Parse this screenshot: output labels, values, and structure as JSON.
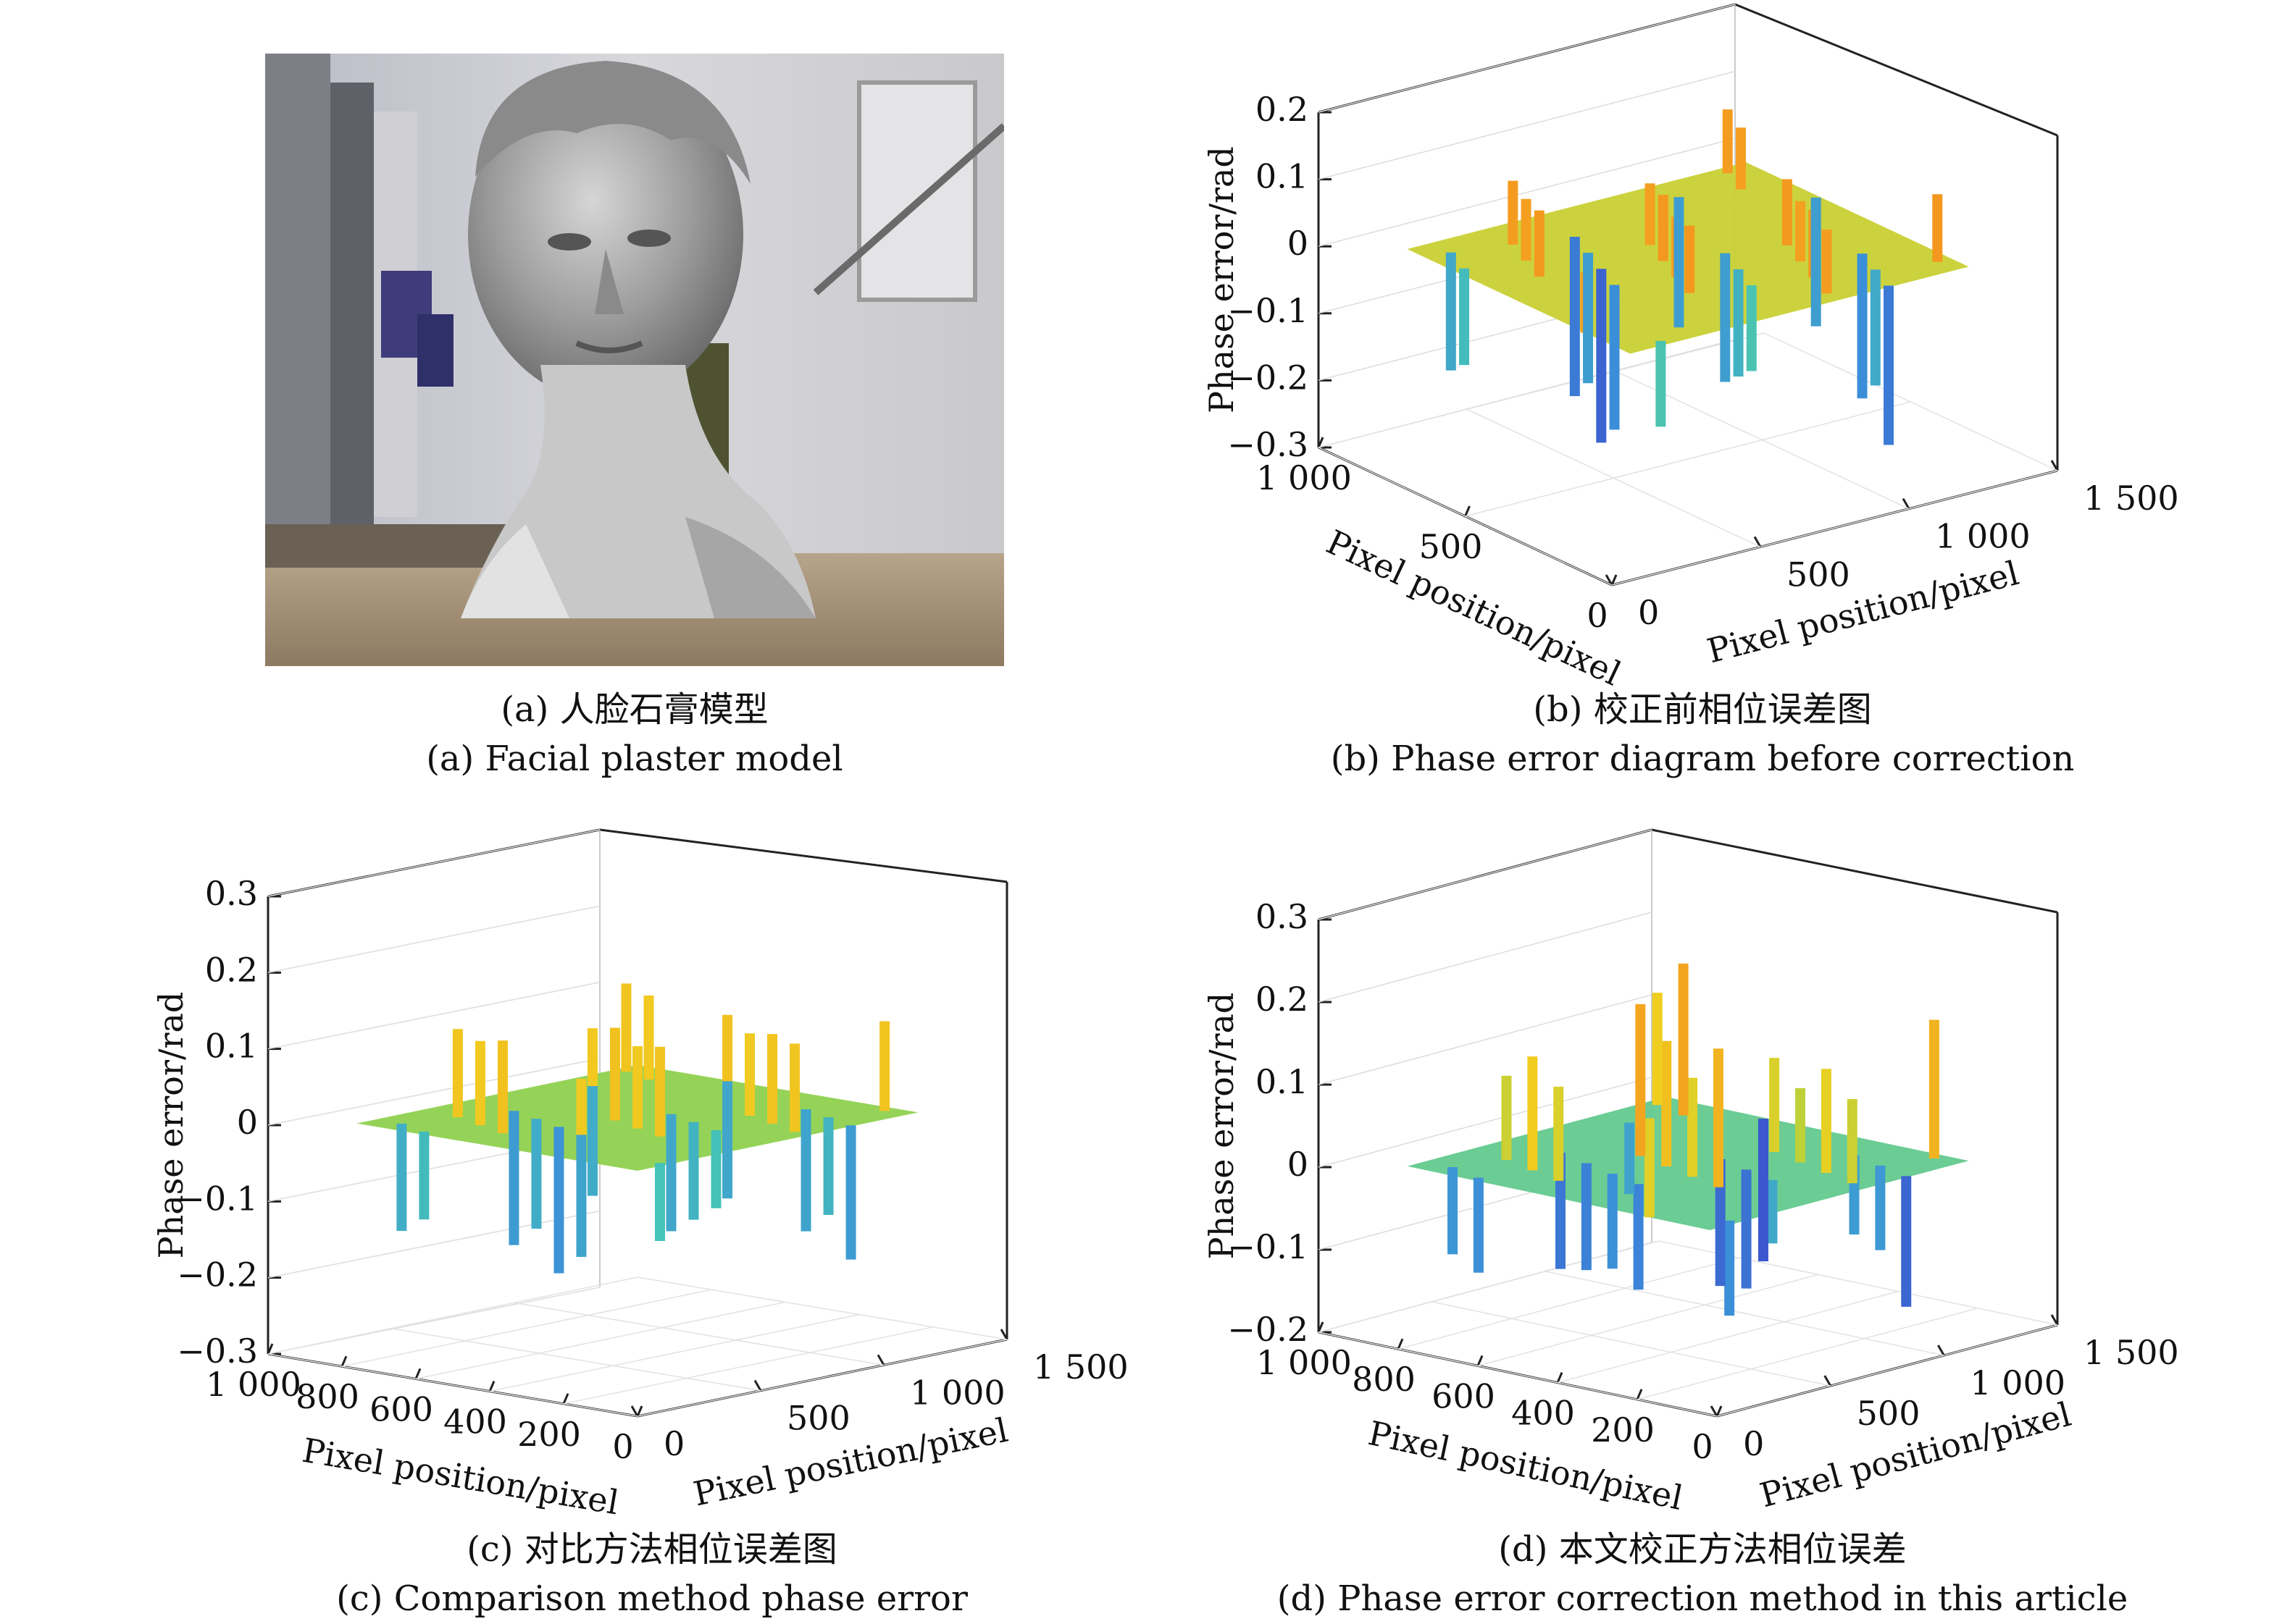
{
  "figure": {
    "panels": [
      {
        "id": "a",
        "caption_cn": "(a) 人脸石膏模型",
        "caption_en": "(a) Facial plaster model"
      },
      {
        "id": "b",
        "caption_cn": "(b) 校正前相位误差图",
        "caption_en": "(b) Phase error diagram before correction"
      },
      {
        "id": "c",
        "caption_cn": "(c) 对比方法相位误差图",
        "caption_en": "(c) Comparison method phase error"
      },
      {
        "id": "d",
        "caption_cn": "(d) 本文校正方法相位误差",
        "caption_en": "(d) Phase error correction method in this article"
      }
    ]
  },
  "chart_data": [
    {
      "panel": "b",
      "type": "surface",
      "zlabel": "Phase error/rad",
      "xlabel": "Pixel position/pixel",
      "ylabel": "Pixel position/pixel",
      "z_ticks": [
        "0.2",
        "0.1",
        "0",
        "−0.1",
        "−0.2",
        "−0.3"
      ],
      "zlim": [
        -0.3,
        0.2
      ],
      "y_ticks": [
        "1 000",
        "500",
        "0"
      ],
      "x_ticks": [
        "0",
        "500",
        "1 000",
        "1 500"
      ],
      "ylim": [
        0,
        1000
      ],
      "xlim": [
        0,
        1500
      ],
      "peaks_approx": [
        0.15,
        0.14,
        0.13,
        0.12,
        0.1
      ],
      "troughs_approx": [
        -0.29,
        -0.27,
        -0.25,
        -0.2
      ],
      "baseline": 0,
      "colormap": [
        "#3b3bc8",
        "#3b8fd9",
        "#45c3b8",
        "#8fd14f",
        "#f0d020",
        "#f58a1f",
        "#d81e1e"
      ]
    },
    {
      "panel": "c",
      "type": "surface",
      "zlabel": "Phase error/rad",
      "xlabel": "Pixel position/pixel",
      "ylabel": "Pixel position/pixel",
      "z_ticks": [
        "0.3",
        "0.2",
        "0.1",
        "0",
        "−0.1",
        "−0.2",
        "−0.3"
      ],
      "zlim": [
        -0.3,
        0.3
      ],
      "y_ticks": [
        "1 000",
        "800",
        "600",
        "400",
        "200",
        "0"
      ],
      "x_ticks": [
        "0",
        "500",
        "1 000",
        "1 500"
      ],
      "ylim": [
        0,
        1000
      ],
      "xlim": [
        0,
        1500
      ],
      "peaks_approx": [
        0.18,
        0.17,
        0.16,
        0.14,
        0.12
      ],
      "troughs_approx": [
        -0.21,
        -0.2,
        -0.18,
        -0.16
      ],
      "baseline": 0,
      "colormap": [
        "#3b3bc8",
        "#3b8fd9",
        "#45c3b8",
        "#8fd14f",
        "#f0d020",
        "#f58a1f",
        "#d81e1e"
      ]
    },
    {
      "panel": "d",
      "type": "surface",
      "zlabel": "Phase error/rad",
      "xlabel": "Pixel position/pixel",
      "ylabel": "Pixel position/pixel",
      "z_ticks": [
        "0.3",
        "0.2",
        "0.1",
        "0",
        "−0.1",
        "−0.2"
      ],
      "zlim": [
        -0.2,
        0.3
      ],
      "y_ticks": [
        "1 000",
        "800",
        "600",
        "400",
        "200",
        "0"
      ],
      "x_ticks": [
        "0",
        "500",
        "1 000",
        "1 500"
      ],
      "ylim": [
        0,
        1000
      ],
      "xlim": [
        0,
        1500
      ],
      "peaks_approx": [
        0.2,
        0.18,
        0.15,
        0.12
      ],
      "troughs_approx": [
        -0.18,
        -0.16,
        -0.12
      ],
      "baseline": 0,
      "colormap": [
        "#3b3bc8",
        "#3b8fd9",
        "#45c3b8",
        "#8fd14f",
        "#f0d020",
        "#f58a1f",
        "#d81e1e"
      ]
    }
  ]
}
